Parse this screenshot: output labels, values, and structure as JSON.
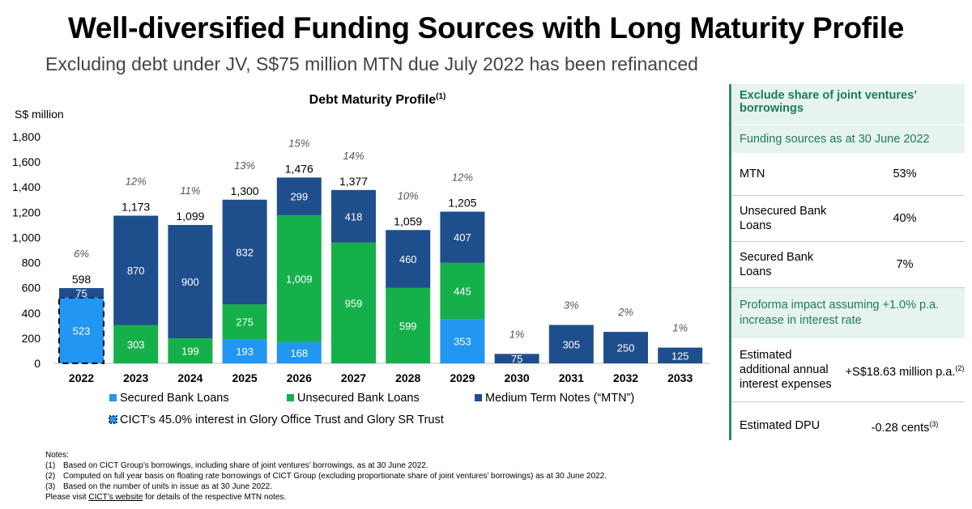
{
  "title": "Well-diversified Funding Sources with Long Maturity Profile",
  "subtitle": "Excluding debt under JV, S$75 million MTN due July 2022 has been refinanced",
  "chart_data": {
    "type": "bar",
    "stacked": true,
    "title": "Debt Maturity Profile",
    "title_superscript": "(1)",
    "ylabel": "S$ million",
    "ylim": [
      0,
      1800
    ],
    "yticks": [
      "0",
      "200",
      "400",
      "600",
      "800",
      "1,000",
      "1,200",
      "1,400",
      "1,600",
      "1,800"
    ],
    "categories": [
      "2022",
      "2023",
      "2024",
      "2025",
      "2026",
      "2027",
      "2028",
      "2029",
      "2030",
      "2031",
      "2032",
      "2033"
    ],
    "series": [
      {
        "name": "Secured Bank Loans",
        "color": "#2196f3",
        "values": [
          523,
          0,
          0,
          193,
          168,
          0,
          0,
          353,
          0,
          0,
          0,
          0
        ],
        "labels": [
          "523",
          "",
          "",
          "193",
          "168",
          "",
          "",
          "353",
          "",
          "",
          "",
          ""
        ]
      },
      {
        "name": "Unsecured Bank Loans",
        "color": "#16b04b",
        "values": [
          0,
          303,
          199,
          275,
          1009,
          959,
          599,
          445,
          0,
          0,
          0,
          0
        ],
        "labels": [
          "",
          "303",
          "199",
          "275",
          "1,009",
          "959",
          "599",
          "445",
          "",
          "",
          "",
          ""
        ]
      },
      {
        "name": "Medium Term Notes (“MTN”)",
        "color": "#1f4e8c",
        "values": [
          75,
          870,
          900,
          832,
          299,
          418,
          460,
          407,
          75,
          305,
          250,
          125
        ],
        "labels": [
          "75",
          "870",
          "900",
          "832",
          "299",
          "418",
          "460",
          "407",
          "75",
          "305",
          "250",
          "125"
        ]
      }
    ],
    "totals": [
      "598",
      "1,173",
      "1,099",
      "1,300",
      "1,476",
      "1,377",
      "1,059",
      "1,205",
      "",
      "",
      "",
      ""
    ],
    "percentages": [
      "6%",
      "12%",
      "11%",
      "13%",
      "15%",
      "14%",
      "10%",
      "12%",
      "1%",
      "3%",
      "2%",
      "1%"
    ],
    "legend_extra": "CICT's 45.0% interest in Glory Office Trust and Glory SR Trust",
    "grid": false,
    "legend_position": "bottom"
  },
  "side_panel": {
    "header": "Exclude share of joint ventures’ borrowings",
    "section1": "Funding sources as at 30 June 2022",
    "rows1": [
      {
        "label": "MTN",
        "value": "53%"
      },
      {
        "label": "Unsecured Bank Loans",
        "value": "40%"
      },
      {
        "label": "Secured Bank Loans",
        "value": "7%"
      }
    ],
    "section2": "Proforma impact assuming +1.0% p.a. increase in interest rate",
    "row_interest": {
      "label": "Estimated additional annual interest expenses",
      "value": "+S$18.63 million p.a.",
      "sup": "(2)"
    },
    "row_dpu": {
      "label": "Estimated DPU",
      "value": "-0.28 cents",
      "sup": "(3)"
    }
  },
  "notes": {
    "heading": "Notes:",
    "items": [
      {
        "num": "(1)",
        "text": "Based on CICT Group’s borrowings, including share of joint ventures’ borrowings, as at 30 June 2022."
      },
      {
        "num": "(2)",
        "text": "Computed on full year basis on floating rate borrowings of CICT Group (excluding proportionate share of joint ventures’ borrowings) as at 30 June 2022."
      },
      {
        "num": "(3)",
        "text": "Based on the number of units in issue as at 30 June 2022."
      }
    ],
    "visit_prefix": "Please visit ",
    "visit_link": "CICT’s website",
    "visit_suffix": " for details of the respective MTN notes."
  }
}
